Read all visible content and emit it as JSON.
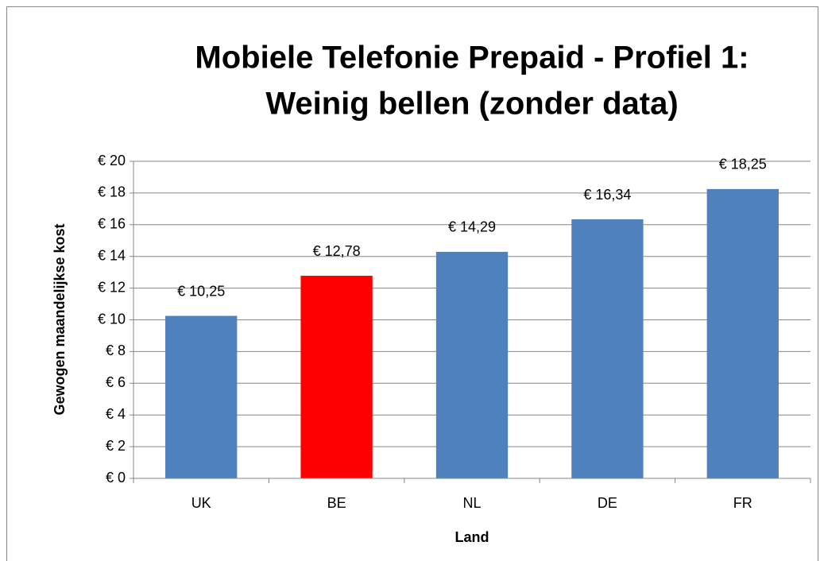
{
  "chart_data": {
    "type": "bar",
    "title": [
      "Mobiele Telefonie Prepaid - Profiel 1:",
      "Weinig bellen (zonder data)"
    ],
    "x_label": "Land",
    "y_label": "Gewogen maandelijkse kost",
    "categories": [
      "UK",
      "BE",
      "NL",
      "DE",
      "FR"
    ],
    "values": [
      10.25,
      12.78,
      14.29,
      16.34,
      18.25
    ],
    "value_labels": [
      "€ 10,25",
      "€ 12,78",
      "€ 14,29",
      "€ 16,34",
      "€ 18,25"
    ],
    "colors": [
      "#4f81bd",
      "#ff0000",
      "#4f81bd",
      "#4f81bd",
      "#4f81bd"
    ],
    "ylim": [
      0,
      20
    ],
    "yticks": [
      {
        "value": 0,
        "label": "€ 0"
      },
      {
        "value": 2,
        "label": "€ 2"
      },
      {
        "value": 4,
        "label": "€ 4"
      },
      {
        "value": 6,
        "label": "€ 6"
      },
      {
        "value": 8,
        "label": "€ 8"
      },
      {
        "value": 10,
        "label": "€ 10"
      },
      {
        "value": 12,
        "label": "€ 12"
      },
      {
        "value": 14,
        "label": "€ 14"
      },
      {
        "value": 16,
        "label": "€ 16"
      },
      {
        "value": 18,
        "label": "€ 18"
      },
      {
        "value": 20,
        "label": "€ 20"
      }
    ],
    "grid": true
  }
}
